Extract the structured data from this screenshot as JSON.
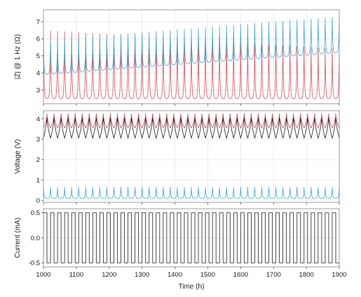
{
  "chart_data": {
    "type": "line",
    "x_axis": {
      "label": "Time (h)",
      "range": [
        1000,
        1900
      ],
      "ticks": [
        1000,
        1100,
        1200,
        1300,
        1400,
        1500,
        1600,
        1700,
        1800,
        1900
      ],
      "grid": true
    },
    "cycling": {
      "start_h": 1000,
      "end_h": 1900,
      "cycle_count": 42
    },
    "panels": [
      {
        "name": "impedance",
        "ylabel": "|Z| @ 1 Hz (Ω)",
        "ylim": [
          2.2,
          7.7
        ],
        "yticks": [
          3,
          4,
          5,
          6,
          7
        ],
        "grid": true,
        "series": [
          {
            "color": "#e05060",
            "baseline_start": 2.5,
            "baseline_end": 2.5,
            "peak_start": 6.5,
            "peak_end": 5.4,
            "shape": "spike"
          },
          {
            "color": "#3fa7d6",
            "baseline_start": 3.9,
            "baseline_end": 5.2,
            "peak_start": 5.9,
            "peak_end": 7.3,
            "shape": "spike"
          }
        ]
      },
      {
        "name": "voltage",
        "ylabel": "Voltage (V)",
        "ylim": [
          -0.1,
          4.4
        ],
        "yticks": [
          0,
          1,
          2,
          3,
          4
        ],
        "grid": true,
        "series": [
          {
            "color": "#222222",
            "baseline_start": 3.05,
            "baseline_end": 3.05,
            "peak_start": 4.2,
            "peak_end": 4.2,
            "shape": "sawtooth"
          },
          {
            "color": "#d04050",
            "baseline_start": 3.55,
            "baseline_end": 3.55,
            "peak_start": 4.25,
            "peak_end": 4.25,
            "shape": "sawtooth"
          },
          {
            "color": "#3fa7d6",
            "baseline_start": 0.1,
            "baseline_end": 0.1,
            "peak_start": 0.65,
            "peak_end": 0.65,
            "shape": "spike"
          }
        ]
      },
      {
        "name": "current",
        "ylabel": "Current (mA)",
        "ylim": [
          -0.58,
          0.58
        ],
        "yticks": [
          -0.5,
          0.0,
          0.5
        ],
        "ytick_labels": [
          "-0.5",
          "0.0",
          "0.5"
        ],
        "grid": true,
        "series": [
          {
            "color": "#222222",
            "low": -0.5,
            "high": 0.5,
            "shape": "square"
          }
        ]
      }
    ]
  }
}
